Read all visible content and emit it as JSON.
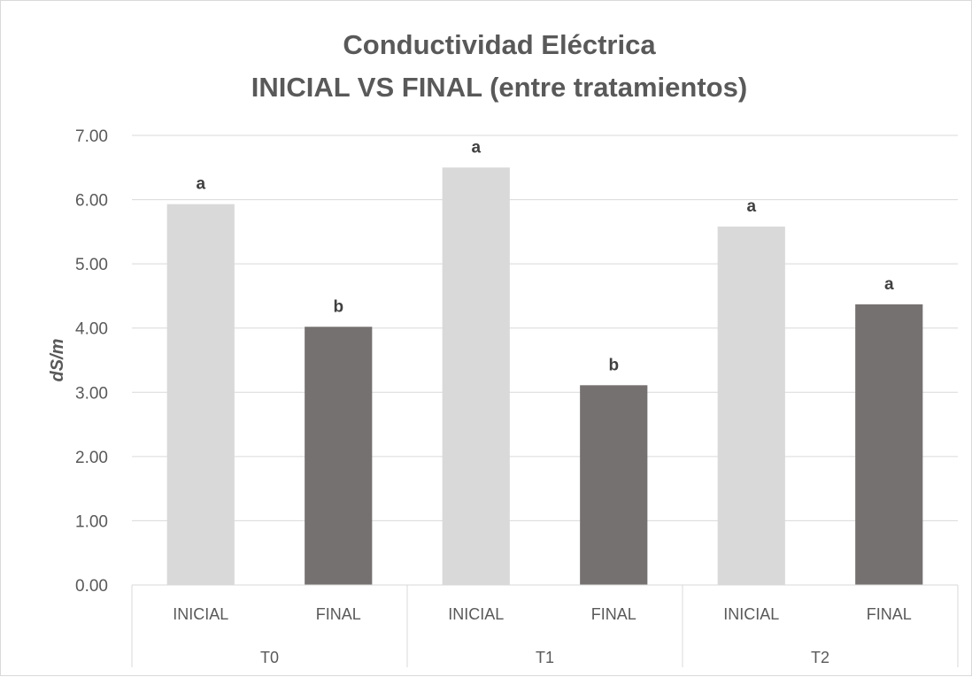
{
  "chart_data": {
    "type": "bar",
    "title_lines": [
      "Conductividad Eléctrica",
      "INICIAL VS FINAL (entre tratamientos)"
    ],
    "ylabel": "dS/m",
    "ylim": [
      0,
      7
    ],
    "y_ticks": [
      "0.00",
      "1.00",
      "2.00",
      "3.00",
      "4.00",
      "5.00",
      "6.00",
      "7.00"
    ],
    "groups": [
      "T0",
      "T1",
      "T2"
    ],
    "categories": [
      "INICIAL",
      "FINAL",
      "INICIAL",
      "FINAL",
      "INICIAL",
      "FINAL"
    ],
    "values": [
      5.93,
      4.02,
      6.5,
      3.11,
      5.58,
      4.37
    ],
    "letters": [
      "a",
      "b",
      "a",
      "b",
      "a",
      "a"
    ],
    "bar_colors": [
      "#d9d9d9",
      "#767171",
      "#d9d9d9",
      "#767171",
      "#d9d9d9",
      "#767171"
    ],
    "grid": true,
    "legend": "none"
  }
}
